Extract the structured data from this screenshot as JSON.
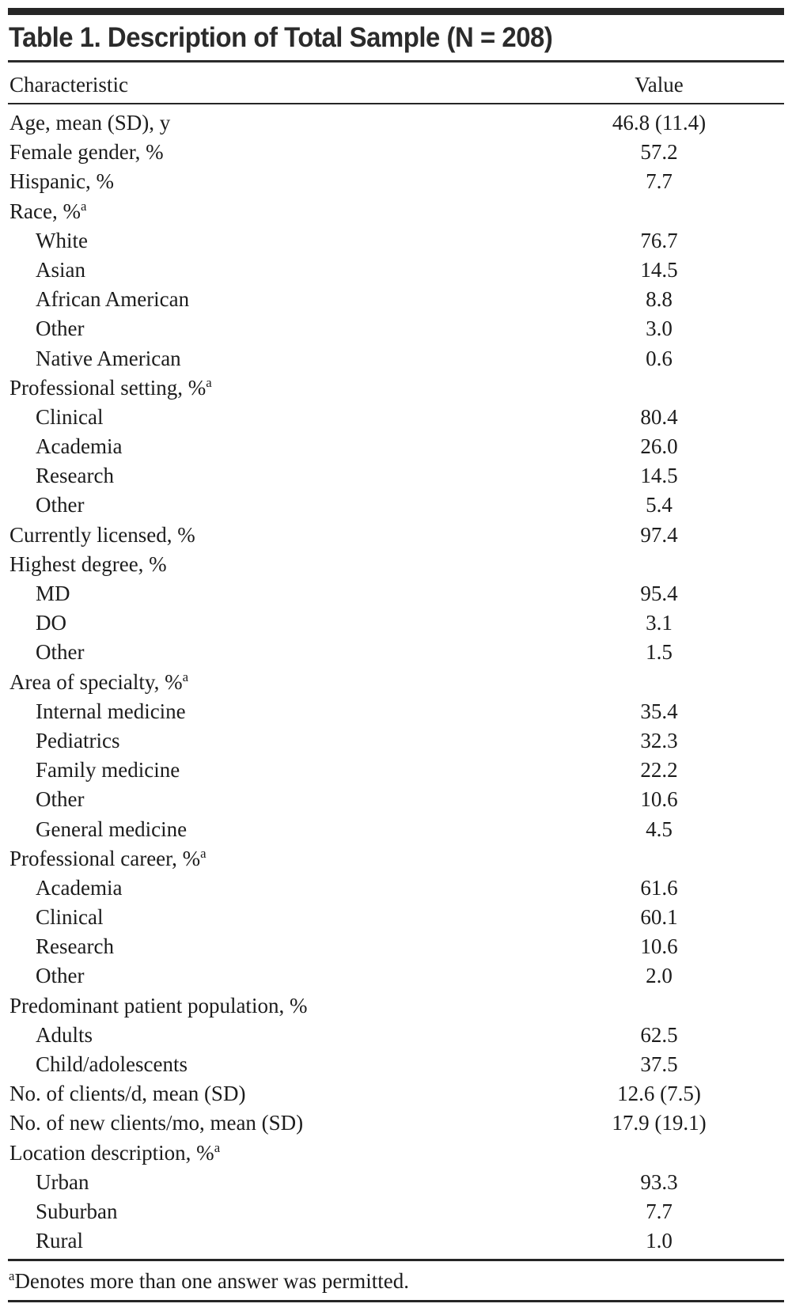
{
  "page": {
    "background_color": "#ffffff",
    "text_color": "#1c1c1c",
    "accent_bar_color": "#262626"
  },
  "table": {
    "title": "Table 1. Description of Total Sample (N = 208)",
    "header": {
      "characteristic": "Characteristic",
      "value": "Value"
    },
    "rows": [
      {
        "label": "Age, mean (SD), y",
        "sup": "",
        "indent": false,
        "value": "46.8 (11.4)"
      },
      {
        "label": "Female gender, %",
        "sup": "",
        "indent": false,
        "value": "57.2"
      },
      {
        "label": "Hispanic, %",
        "sup": "",
        "indent": false,
        "value": "7.7"
      },
      {
        "label": "Race, %",
        "sup": "a",
        "indent": false,
        "value": ""
      },
      {
        "label": "White",
        "sup": "",
        "indent": true,
        "value": "76.7"
      },
      {
        "label": "Asian",
        "sup": "",
        "indent": true,
        "value": "14.5"
      },
      {
        "label": "African American",
        "sup": "",
        "indent": true,
        "value": "8.8"
      },
      {
        "label": "Other",
        "sup": "",
        "indent": true,
        "value": "3.0"
      },
      {
        "label": "Native American",
        "sup": "",
        "indent": true,
        "value": "0.6"
      },
      {
        "label": "Professional setting, %",
        "sup": "a",
        "indent": false,
        "value": ""
      },
      {
        "label": "Clinical",
        "sup": "",
        "indent": true,
        "value": "80.4"
      },
      {
        "label": "Academia",
        "sup": "",
        "indent": true,
        "value": "26.0"
      },
      {
        "label": "Research",
        "sup": "",
        "indent": true,
        "value": "14.5"
      },
      {
        "label": "Other",
        "sup": "",
        "indent": true,
        "value": "5.4"
      },
      {
        "label": "Currently licensed, %",
        "sup": "",
        "indent": false,
        "value": "97.4"
      },
      {
        "label": "Highest degree, %",
        "sup": "",
        "indent": false,
        "value": ""
      },
      {
        "label": "MD",
        "sup": "",
        "indent": true,
        "value": "95.4"
      },
      {
        "label": "DO",
        "sup": "",
        "indent": true,
        "value": "3.1"
      },
      {
        "label": "Other",
        "sup": "",
        "indent": true,
        "value": "1.5"
      },
      {
        "label": "Area of specialty, %",
        "sup": "a",
        "indent": false,
        "value": ""
      },
      {
        "label": "Internal medicine",
        "sup": "",
        "indent": true,
        "value": "35.4"
      },
      {
        "label": "Pediatrics",
        "sup": "",
        "indent": true,
        "value": "32.3"
      },
      {
        "label": "Family medicine",
        "sup": "",
        "indent": true,
        "value": "22.2"
      },
      {
        "label": "Other",
        "sup": "",
        "indent": true,
        "value": "10.6"
      },
      {
        "label": "General medicine",
        "sup": "",
        "indent": true,
        "value": "4.5"
      },
      {
        "label": "Professional career, %",
        "sup": "a",
        "indent": false,
        "value": ""
      },
      {
        "label": "Academia",
        "sup": "",
        "indent": true,
        "value": "61.6"
      },
      {
        "label": "Clinical",
        "sup": "",
        "indent": true,
        "value": "60.1"
      },
      {
        "label": "Research",
        "sup": "",
        "indent": true,
        "value": "10.6"
      },
      {
        "label": "Other",
        "sup": "",
        "indent": true,
        "value": "2.0"
      },
      {
        "label": "Predominant patient population, %",
        "sup": "",
        "indent": false,
        "value": ""
      },
      {
        "label": "Adults",
        "sup": "",
        "indent": true,
        "value": "62.5"
      },
      {
        "label": "Child/adolescents",
        "sup": "",
        "indent": true,
        "value": "37.5"
      },
      {
        "label": "No. of clients/d, mean (SD)",
        "sup": "",
        "indent": false,
        "value": "12.6 (7.5)"
      },
      {
        "label": "No. of new clients/mo, mean (SD)",
        "sup": "",
        "indent": false,
        "value": "17.9 (19.1)"
      },
      {
        "label": "Location description, %",
        "sup": "a",
        "indent": false,
        "value": ""
      },
      {
        "label": "Urban",
        "sup": "",
        "indent": true,
        "value": "93.3"
      },
      {
        "label": "Suburban",
        "sup": "",
        "indent": true,
        "value": "7.7"
      },
      {
        "label": "Rural",
        "sup": "",
        "indent": true,
        "value": "1.0"
      }
    ],
    "footnote": {
      "marker": "a",
      "text": "Denotes more than one answer was permitted."
    }
  }
}
